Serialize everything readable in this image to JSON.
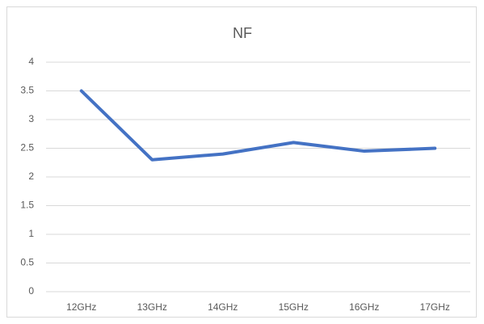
{
  "chart_data": {
    "type": "line",
    "title": "NF",
    "categories": [
      "12GHz",
      "13GHz",
      "14GHz",
      "15GHz",
      "16GHz",
      "17GHz"
    ],
    "series": [
      {
        "name": "NF",
        "color": "#4472c4",
        "values": [
          3.5,
          2.3,
          2.4,
          2.6,
          2.45,
          2.5
        ]
      }
    ],
    "ylim": [
      0,
      4
    ],
    "yticks": [
      0,
      0.5,
      1,
      1.5,
      2,
      2.5,
      3,
      3.5,
      4
    ],
    "grid": true
  }
}
